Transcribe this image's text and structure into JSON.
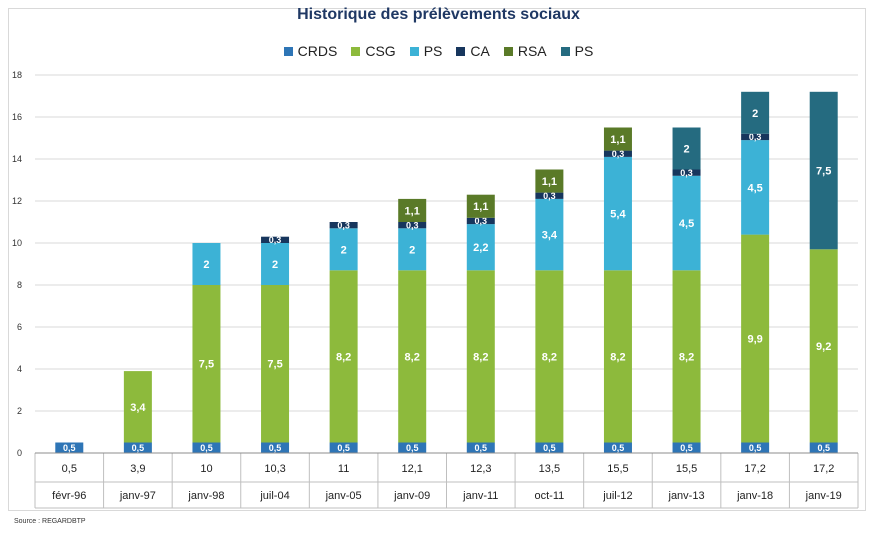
{
  "chart_data": {
    "type": "bar",
    "stacked": true,
    "title": "Historique des prélèvements sociaux",
    "categories": [
      "févr-96",
      "janv-97",
      "janv-98",
      "juil-04",
      "janv-05",
      "janv-09",
      "janv-11",
      "oct-11",
      "juil-12",
      "janv-13",
      "janv-18",
      "janv-19"
    ],
    "totals": [
      "0,5",
      "3,9",
      "10",
      "10,3",
      "11",
      "12,1",
      "12,3",
      "13,5",
      "15,5",
      "15,5",
      "17,2",
      "17,2"
    ],
    "ylim": [
      0,
      18
    ],
    "yticks": [
      0,
      2,
      4,
      6,
      8,
      10,
      12,
      14,
      16,
      18
    ],
    "grid": true,
    "legend_position": "top",
    "series": [
      {
        "name": "CRDS",
        "color": "#2e75b6",
        "values": [
          0.5,
          0.5,
          0.5,
          0.5,
          0.5,
          0.5,
          0.5,
          0.5,
          0.5,
          0.5,
          0.5,
          0.5
        ],
        "labels": [
          "0,5",
          "0,5",
          "0,5",
          "0,5",
          "0,5",
          "0,5",
          "0,5",
          "0,5",
          "0,5",
          "0,5",
          "0,5",
          "0,5"
        ]
      },
      {
        "name": "CSG",
        "color": "#8dba3c",
        "values": [
          0,
          3.4,
          7.5,
          7.5,
          8.2,
          8.2,
          8.2,
          8.2,
          8.2,
          8.2,
          9.9,
          9.2
        ],
        "labels": [
          "",
          "3,4",
          "7,5",
          "7,5",
          "8,2",
          "8,2",
          "8,2",
          "8,2",
          "8,2",
          "8,2",
          "9,9",
          "9,2"
        ]
      },
      {
        "name": "PS",
        "color": "#3cb2d6",
        "values": [
          0,
          0,
          2,
          2,
          2,
          2,
          2.2,
          3.4,
          5.4,
          4.5,
          4.5,
          0
        ],
        "labels": [
          "",
          "",
          "2",
          "2",
          "2",
          "2",
          "2,2",
          "3,4",
          "5,4",
          "4,5",
          "4,5",
          ""
        ]
      },
      {
        "name": "CA",
        "color": "#17365d",
        "values": [
          0,
          0,
          0,
          0.3,
          0.3,
          0.3,
          0.3,
          0.3,
          0.3,
          0.3,
          0.3,
          0
        ],
        "labels": [
          "",
          "",
          "",
          "0,3",
          "0,3",
          "0,3",
          "0,3",
          "0,3",
          "0,3",
          "0,3",
          "0,3",
          ""
        ]
      },
      {
        "name": "RSA",
        "color": "#5a7a28",
        "values": [
          0,
          0,
          0,
          0,
          0,
          1.1,
          1.1,
          1.1,
          1.1,
          0,
          0,
          0
        ],
        "labels": [
          "",
          "",
          "",
          "",
          "",
          "1,1",
          "1,1",
          "1,1",
          "1,1",
          "",
          "",
          ""
        ]
      },
      {
        "name": "PS",
        "color": "#256b80",
        "values": [
          0,
          0,
          0,
          0,
          0,
          0,
          0,
          0,
          0,
          2,
          2,
          7.5
        ],
        "labels": [
          "",
          "",
          "",
          "",
          "",
          "",
          "",
          "",
          "",
          "2",
          "2",
          "7,5"
        ]
      }
    ]
  },
  "source": "Source : REGARDBTP"
}
